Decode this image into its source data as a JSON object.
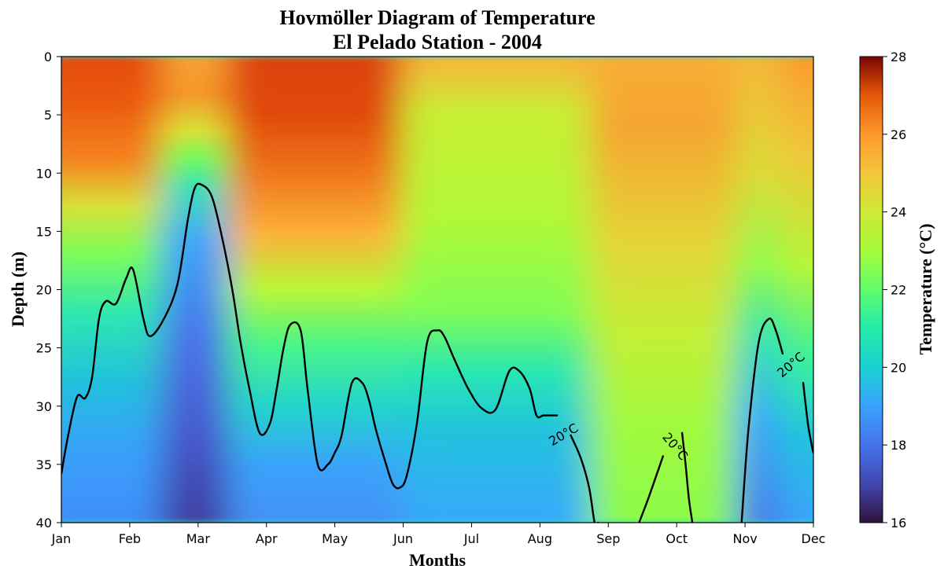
{
  "chart_data": {
    "type": "heatmap",
    "title_line1": "Hovmöller Diagram of Temperature",
    "title_line2": "El Pelado Station - 2004",
    "xlabel": "Months",
    "ylabel": "Depth (m)",
    "colorbar_label": "Temperature (°C)",
    "colormap": "turbo",
    "x_categories": [
      "Jan",
      "Feb",
      "Mar",
      "Apr",
      "May",
      "Jun",
      "Jul",
      "Aug",
      "Sep",
      "Oct",
      "Nov",
      "Dec"
    ],
    "y_ticks": [
      0,
      5,
      10,
      15,
      20,
      25,
      30,
      35,
      40
    ],
    "ylim": [
      40,
      0
    ],
    "y_inverted": true,
    "colorbar_ticks": [
      16,
      18,
      20,
      22,
      24,
      26,
      28
    ],
    "colorbar_range": [
      16,
      28
    ],
    "contour_level": 20,
    "contour_label": "20°C",
    "contour_20C_depth": {
      "segment_1": {
        "month_index": [
          0.0,
          0.1,
          0.23,
          0.35,
          0.45,
          0.55,
          0.65,
          0.8,
          0.95,
          1.05,
          1.2,
          1.3,
          1.5,
          1.7,
          1.85,
          1.95,
          2.05,
          2.2,
          2.35,
          2.5,
          2.62,
          2.75,
          2.9,
          3.05,
          3.15,
          3.25,
          3.35,
          3.5,
          3.6,
          3.75,
          3.9,
          4.0,
          4.1,
          4.25,
          4.4,
          4.5,
          4.6,
          4.75,
          4.85,
          4.95,
          5.05,
          5.2,
          5.35,
          5.5,
          5.6,
          5.75,
          5.95,
          6.15,
          6.35,
          6.55,
          6.7,
          6.85,
          6.95,
          7.05,
          7.15,
          7.25
        ],
        "depth_m": [
          35.8,
          32.5,
          29.2,
          29.3,
          27.5,
          22.5,
          21.0,
          21.2,
          19.0,
          18.3,
          22.5,
          24.0,
          22.5,
          19.5,
          14.0,
          11.3,
          11.0,
          12.0,
          15.5,
          20.0,
          24.5,
          28.5,
          32.3,
          31.5,
          28.5,
          25.0,
          23.0,
          23.5,
          28.5,
          35.0,
          35.0,
          34.0,
          32.5,
          28.0,
          28.0,
          29.5,
          32.0,
          35.0,
          36.7,
          37.0,
          36.0,
          31.5,
          24.5,
          23.5,
          24.0,
          26.0,
          28.5,
          30.2,
          30.3,
          27.0,
          27.0,
          28.5,
          30.8,
          30.8,
          30.8,
          30.8
        ]
      },
      "segment_2": {
        "month_index": [
          7.45,
          7.6,
          7.72,
          7.8,
          7.85
        ],
        "depth_m": [
          32.5,
          34.5,
          37.0,
          40.0,
          40.0
        ]
      },
      "segment_3": {
        "month_index": [
          8.45,
          8.58,
          8.7,
          8.8
        ],
        "depth_m": [
          40.0,
          38.0,
          36.0,
          34.3
        ]
      },
      "segment_4": {
        "month_index": [
          9.08,
          9.13,
          9.18,
          9.23
        ],
        "depth_m": [
          32.3,
          35.0,
          38.0,
          40.0
        ]
      },
      "segment_5": {
        "month_index": [
          9.95,
          10.05,
          10.2,
          10.35,
          10.45,
          10.55
        ],
        "depth_m": [
          40.0,
          32.0,
          24.5,
          22.5,
          23.5,
          25.5
        ]
      },
      "segment_6": {
        "month_index": [
          10.85,
          10.92,
          10.98,
          11.0
        ],
        "depth_m": [
          28.0,
          31.5,
          33.5,
          34.0
        ]
      }
    },
    "contour_label_positions": [
      {
        "month_index": 7.35,
        "depth_m": 32.5,
        "angle": -30
      },
      {
        "month_index": 8.97,
        "depth_m": 33.5,
        "angle": 50
      },
      {
        "month_index": 10.68,
        "depth_m": 26.5,
        "angle": -40
      }
    ]
  }
}
